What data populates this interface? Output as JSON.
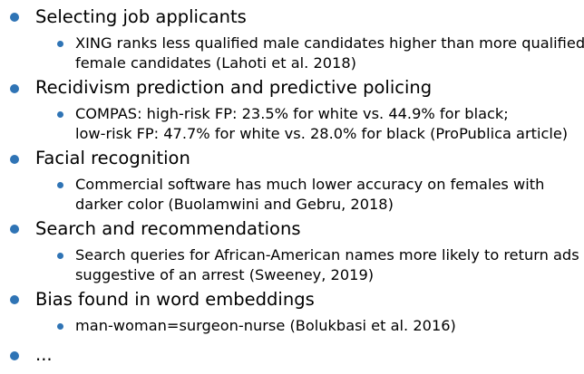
{
  "colors": {
    "bullet": "#2f74b5",
    "text": "#000000",
    "background": "#ffffff"
  },
  "items": [
    {
      "label": "Selecting job applicants",
      "sub": [
        "XING ranks less qualified male candidates higher than more qualified",
        "female candidates (Lahoti et al. 2018)"
      ]
    },
    {
      "label": "Recidivism prediction and predictive policing",
      "sub": [
        "COMPAS: high-risk FP: 23.5% for white vs. 44.9% for black;",
        "low-risk FP: 47.7% for white vs. 28.0% for black (ProPublica article)"
      ]
    },
    {
      "label": "Facial recognition",
      "sub": [
        "Commercial software has much lower accuracy on females with",
        "darker color (Buolamwini and Gebru, 2018)"
      ]
    },
    {
      "label": "Search and recommendations",
      "sub": [
        "Search queries for African-American names more likely to return ads",
        "suggestive of an arrest (Sweeney, 2019)"
      ]
    },
    {
      "label": "Bias found in word embeddings",
      "sub": [
        "man-woman=surgeon-nurse (Bolukbasi et al. 2016)"
      ]
    },
    {
      "label": "..."
    }
  ]
}
